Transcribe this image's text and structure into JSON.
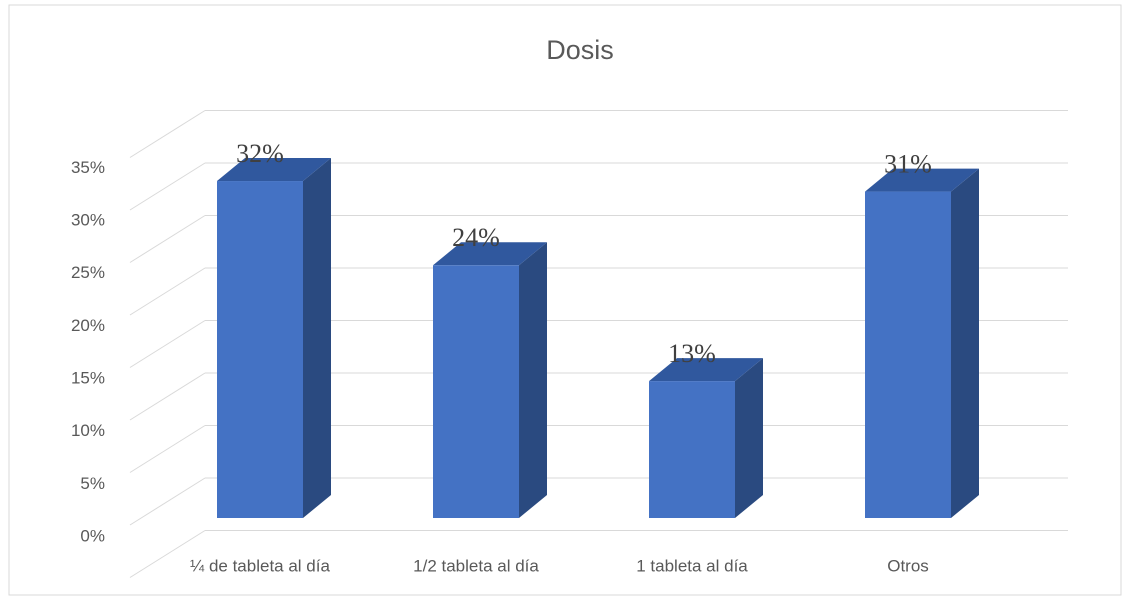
{
  "chart_data": {
    "type": "bar3d",
    "title": "Dosis",
    "categories": [
      "¼ de tableta al día",
      "1/2 tableta al día",
      "1 tableta al día",
      "Otros"
    ],
    "values": [
      32,
      24,
      13,
      31
    ],
    "value_labels": [
      "32%",
      "24%",
      "13%",
      "31%"
    ],
    "color": "#4472c4",
    "ylim": [
      0,
      40
    ],
    "yticks": [
      {
        "value": 0,
        "label": "0%"
      },
      {
        "value": 5,
        "label": "5%"
      },
      {
        "value": 10,
        "label": "10%"
      },
      {
        "value": 15,
        "label": "15%"
      },
      {
        "value": 20,
        "label": "20%"
      },
      {
        "value": 25,
        "label": "25%"
      },
      {
        "value": 30,
        "label": "30%"
      },
      {
        "value": 35,
        "label": "35%"
      }
    ],
    "grid": true
  }
}
